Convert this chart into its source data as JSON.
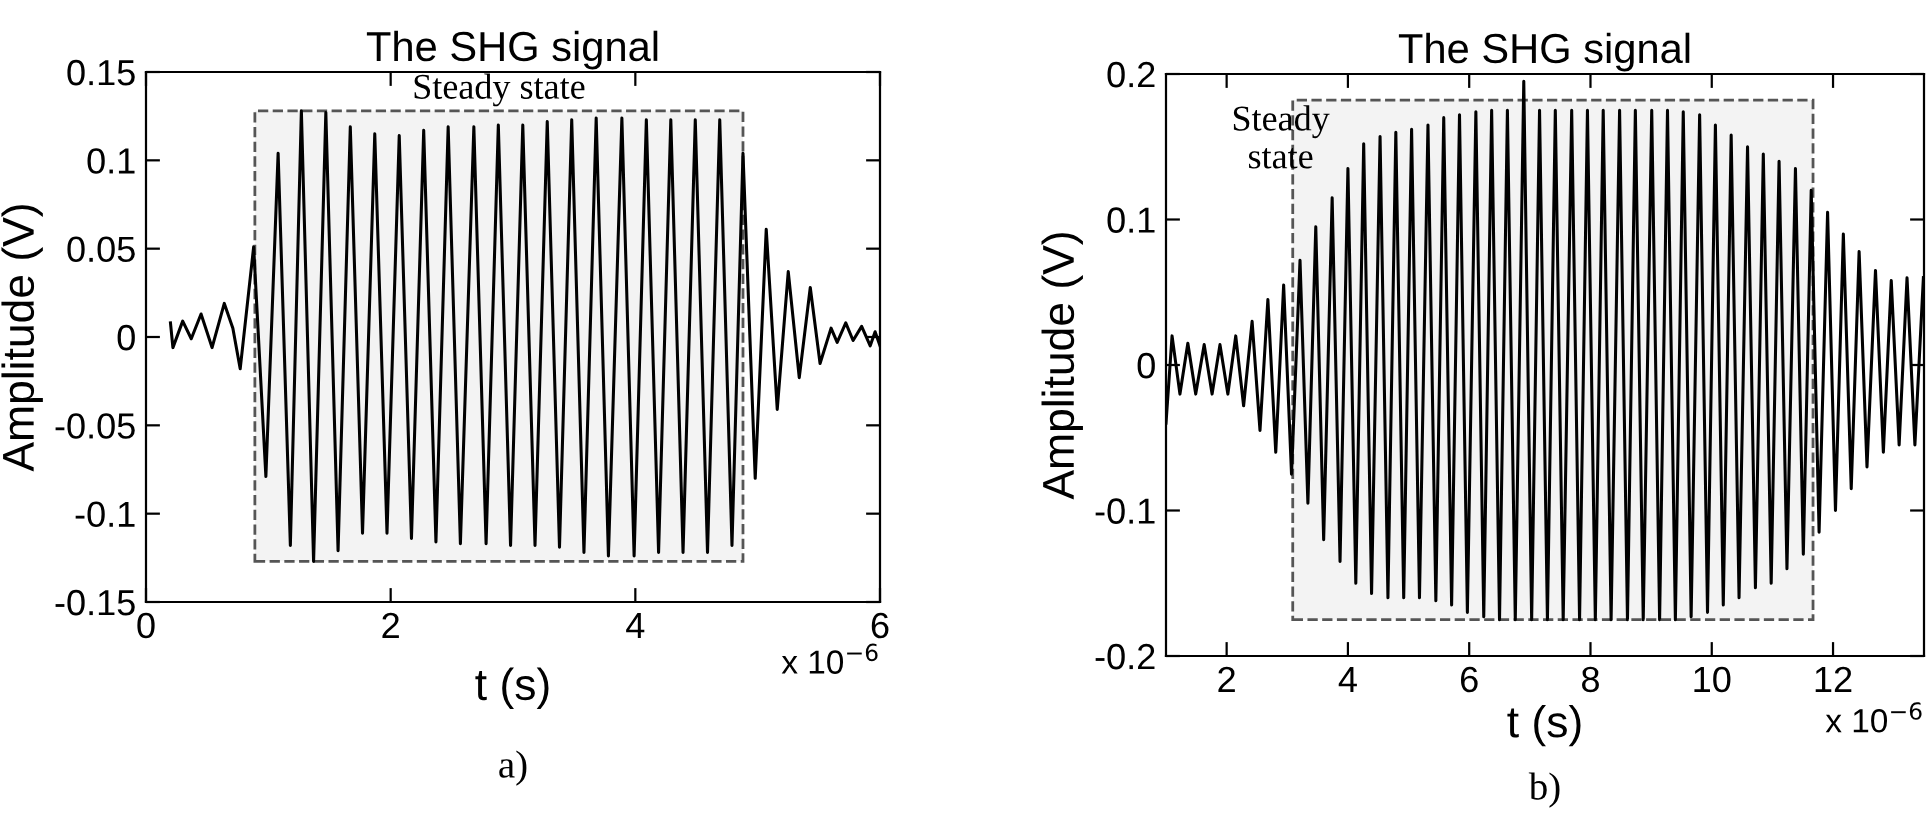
{
  "chart_data": [
    {
      "type": "line",
      "title": "The SHG signal",
      "xlabel": "t (s)",
      "ylabel": "Amplitude (V)",
      "annotations": [
        "x 10$^{−6}$",
        "a)"
      ],
      "xlim": [
        0,
        6
      ],
      "xticks": [
        0,
        2,
        4,
        6
      ],
      "ylim": [
        -0.15,
        0.15
      ],
      "yticks": [
        -0.15,
        -0.1,
        -0.05,
        0,
        0.05,
        0.1,
        0.15
      ],
      "grid": false,
      "legend": false,
      "bands": [
        {
          "axis": "x",
          "from": 0.89,
          "to": 4.88,
          "label": "Steady state"
        }
      ],
      "series": [
        {
          "color": "#000000",
          "x": [
            0.2,
            0.22,
            0.3,
            0.37,
            0.45,
            0.54,
            0.64,
            0.71,
            0.77,
            0.88,
            0.98,
            1.08,
            1.18,
            1.27,
            1.37,
            1.47,
            1.57,
            1.67,
            1.77,
            1.87,
            1.97,
            2.07,
            2.17,
            2.27,
            2.37,
            2.47,
            2.57,
            2.68,
            2.78,
            2.88,
            2.98,
            3.08,
            3.18,
            3.28,
            3.38,
            3.48,
            3.58,
            3.68,
            3.78,
            3.89,
            3.99,
            4.09,
            4.19,
            4.29,
            4.39,
            4.49,
            4.59,
            4.69,
            4.79,
            4.88,
            4.98,
            5.07,
            5.16,
            5.25,
            5.34,
            5.43,
            5.51,
            5.6,
            5.65,
            5.72,
            5.78,
            5.85,
            5.92,
            5.96,
            6.0
          ],
          "values": [
            0.008,
            -0.006,
            0.009,
            -0.001,
            0.013,
            -0.006,
            0.019,
            0.005,
            -0.018,
            0.051,
            -0.079,
            0.104,
            -0.118,
            0.128,
            -0.127,
            0.127,
            -0.121,
            0.119,
            -0.111,
            0.115,
            -0.111,
            0.114,
            -0.114,
            0.117,
            -0.116,
            0.119,
            -0.117,
            0.119,
            -0.117,
            0.12,
            -0.118,
            0.12,
            -0.118,
            0.122,
            -0.119,
            0.123,
            -0.122,
            0.124,
            -0.124,
            0.124,
            -0.124,
            0.123,
            -0.122,
            0.123,
            -0.122,
            0.123,
            -0.122,
            0.123,
            -0.118,
            0.104,
            -0.08,
            0.061,
            -0.041,
            0.037,
            -0.023,
            0.028,
            -0.015,
            0.005,
            -0.003,
            0.008,
            -0.002,
            0.006,
            -0.005,
            0.003,
            -0.005
          ]
        }
      ]
    },
    {
      "type": "line",
      "title": "The SHG signal",
      "xlabel": "t (s)",
      "ylabel": "Amplitude (V)",
      "annotations": [
        "x 10$^{−6}$",
        "b)"
      ],
      "xlim": [
        1,
        13.5
      ],
      "xticks": [
        2,
        4,
        6,
        8,
        10,
        12
      ],
      "ylim": [
        -0.2,
        0.2
      ],
      "yticks": [
        -0.2,
        -0.1,
        0,
        0.1,
        0.2
      ],
      "grid": false,
      "legend": false,
      "bands": [
        {
          "axis": "x",
          "from": 3.09,
          "to": 11.67,
          "label": "Steady\nstate"
        }
      ],
      "series": [
        {
          "color": "#000000",
          "x": [
            1.0,
            1.1,
            1.23,
            1.36,
            1.49,
            1.63,
            1.76,
            1.89,
            2.02,
            2.15,
            2.28,
            2.42,
            2.55,
            2.68,
            2.81,
            2.94,
            3.07,
            3.21,
            3.34,
            3.47,
            3.6,
            3.74,
            3.87,
            4.0,
            4.13,
            4.26,
            4.39,
            4.53,
            4.66,
            4.79,
            4.92,
            5.05,
            5.18,
            5.32,
            5.45,
            5.58,
            5.71,
            5.84,
            5.97,
            6.11,
            6.24,
            6.37,
            6.5,
            6.63,
            6.76,
            6.9,
            7.03,
            7.16,
            7.29,
            7.42,
            7.55,
            7.69,
            7.82,
            7.95,
            8.08,
            8.21,
            8.34,
            8.48,
            8.61,
            8.74,
            8.87,
            9.01,
            9.14,
            9.27,
            9.4,
            9.53,
            9.66,
            9.8,
            9.93,
            10.06,
            10.19,
            10.32,
            10.45,
            10.59,
            10.72,
            10.85,
            10.98,
            11.11,
            11.24,
            11.38,
            11.51,
            11.64,
            11.77,
            11.91,
            12.04,
            12.17,
            12.3,
            12.43,
            12.56,
            12.7,
            12.83,
            12.96,
            13.09,
            13.22,
            13.35,
            13.49
          ],
          "values": [
            -0.04,
            0.02,
            -0.02,
            0.015,
            -0.02,
            0.014,
            -0.02,
            0.014,
            -0.02,
            0.02,
            -0.028,
            0.03,
            -0.045,
            0.045,
            -0.06,
            0.055,
            -0.075,
            0.072,
            -0.095,
            0.095,
            -0.12,
            0.115,
            -0.135,
            0.135,
            -0.15,
            0.152,
            -0.157,
            0.157,
            -0.16,
            0.16,
            -0.16,
            0.162,
            -0.16,
            0.165,
            -0.162,
            0.17,
            -0.165,
            0.172,
            -0.17,
            0.174,
            -0.173,
            0.175,
            -0.175,
            0.175,
            -0.175,
            0.195,
            -0.175,
            0.175,
            -0.175,
            0.175,
            -0.175,
            0.175,
            -0.175,
            0.175,
            -0.175,
            0.175,
            -0.175,
            0.175,
            -0.175,
            0.175,
            -0.175,
            0.175,
            -0.175,
            0.175,
            -0.175,
            0.174,
            -0.173,
            0.172,
            -0.17,
            0.165,
            -0.165,
            0.158,
            -0.16,
            0.15,
            -0.153,
            0.145,
            -0.15,
            0.14,
            -0.14,
            0.135,
            -0.13,
            0.12,
            -0.115,
            0.105,
            -0.1,
            0.09,
            -0.085,
            0.078,
            -0.07,
            0.065,
            -0.06,
            0.058,
            -0.055,
            0.06,
            -0.055,
            0.06
          ]
        }
      ]
    }
  ]
}
